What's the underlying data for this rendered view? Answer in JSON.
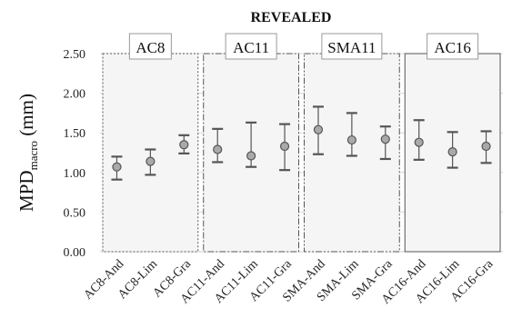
{
  "chart_data": {
    "type": "scatter",
    "title": "REVEALED",
    "ylabel_main": "MPD",
    "ylabel_sub": "macro",
    "ylabel_unit": " (mm)",
    "ylim": [
      0.0,
      2.5
    ],
    "yticks": [
      "0.00",
      "0.50",
      "1.00",
      "1.50",
      "2.00",
      "2.50"
    ],
    "ytick_values": [
      0,
      0.5,
      1.0,
      1.5,
      2.0,
      2.5
    ],
    "grid": true,
    "categories": [
      "AC8-And",
      "AC8-Lim",
      "AC8-Gra",
      "AC11-And",
      "AC11-Lim",
      "AC11-Gra",
      "SMA-And",
      "SMA-Lim",
      "SMA-Gra",
      "AC16-And",
      "AC16-Lim",
      "AC16-Gra"
    ],
    "groups": [
      {
        "label": "AC8",
        "start": 0,
        "end": 2,
        "border": "dotted"
      },
      {
        "label": "AC11",
        "start": 3,
        "end": 5,
        "border": "dashdot"
      },
      {
        "label": "SMA11",
        "start": 6,
        "end": 8,
        "border": "dashdotdot"
      },
      {
        "label": "AC16",
        "start": 9,
        "end": 11,
        "border": "solid"
      }
    ],
    "mean": [
      1.07,
      1.14,
      1.35,
      1.29,
      1.21,
      1.33,
      1.54,
      1.41,
      1.42,
      1.38,
      1.26,
      1.33
    ],
    "lower": [
      0.91,
      0.97,
      1.24,
      1.13,
      1.07,
      1.03,
      1.23,
      1.21,
      1.17,
      1.16,
      1.06,
      1.12
    ],
    "upper": [
      1.2,
      1.29,
      1.47,
      1.55,
      1.63,
      1.61,
      1.83,
      1.75,
      1.58,
      1.66,
      1.51,
      1.52
    ],
    "colors": {
      "marker_fill": "#a9a9a9",
      "marker_stroke": "#555555",
      "errorbar": "#555555",
      "group_fill": "#f5f5f5",
      "group_border": "#555555",
      "grid": "#d9d9d9"
    }
  }
}
